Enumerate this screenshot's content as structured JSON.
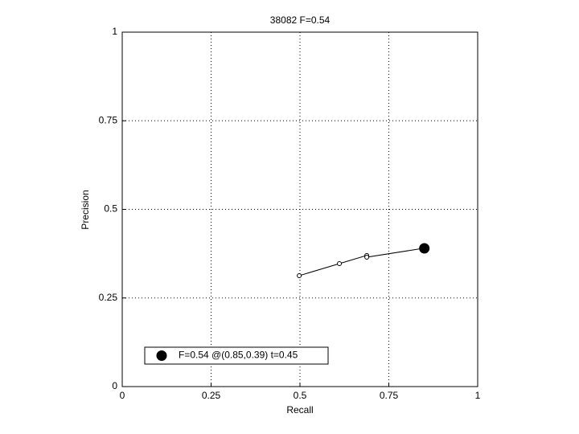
{
  "chart_data": {
    "type": "line",
    "title": "38082 F=0.54",
    "xlabel": "Recall",
    "ylabel": "Precision",
    "xlim": [
      0,
      1
    ],
    "ylim": [
      0,
      1
    ],
    "xticks": [
      0,
      0.25,
      0.5,
      0.75,
      1
    ],
    "yticks": [
      0,
      0.25,
      0.5,
      0.75,
      1
    ],
    "grid": true,
    "legend": "lower left",
    "series": [
      {
        "x": [
          0.498,
          0.611,
          0.688,
          0.688,
          0.846
        ],
        "values": [
          0.313,
          0.347,
          0.37,
          0.365,
          0.39
        ],
        "color": "#000000",
        "marker": "open"
      },
      {
        "name": "F=0.54 @(0.85,0.39) t=0.45",
        "x": [
          0.85
        ],
        "values": [
          0.39
        ],
        "color": "#000000",
        "marker": "filled"
      }
    ]
  }
}
